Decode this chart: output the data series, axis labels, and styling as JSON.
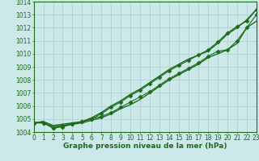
{
  "x": [
    0,
    1,
    2,
    3,
    4,
    5,
    6,
    7,
    8,
    9,
    10,
    11,
    12,
    13,
    14,
    15,
    16,
    17,
    18,
    19,
    20,
    21,
    22,
    23
  ],
  "series": [
    {
      "name": "smooth_top",
      "y": [
        1004.7,
        1004.8,
        1004.5,
        1004.6,
        1004.7,
        1004.8,
        1005.1,
        1005.5,
        1006.0,
        1006.4,
        1006.9,
        1007.3,
        1007.8,
        1008.3,
        1008.8,
        1009.2,
        1009.6,
        1009.9,
        1010.2,
        1010.8,
        1011.5,
        1012.0,
        1012.6,
        1013.4
      ],
      "color": "#1a6b1a",
      "marker": "None",
      "markersize": 0,
      "linestyle": "-",
      "linewidth": 1.0
    },
    {
      "name": "upper_marked",
      "y": [
        1004.7,
        1004.7,
        1004.3,
        1004.4,
        1004.6,
        1004.8,
        1005.0,
        1005.4,
        1005.9,
        1006.3,
        1006.8,
        1007.2,
        1007.7,
        1008.2,
        1008.7,
        1009.1,
        1009.5,
        1009.9,
        1010.3,
        1010.9,
        1011.6,
        1012.1,
        1012.5,
        1013.4
      ],
      "color": "#1a6b1a",
      "marker": "D",
      "markersize": 2.5,
      "linestyle": "-",
      "linewidth": 0.8
    },
    {
      "name": "lower_marked",
      "y": [
        1004.7,
        1004.7,
        1004.3,
        1004.5,
        1004.6,
        1004.8,
        1005.0,
        1005.2,
        1005.5,
        1005.9,
        1006.3,
        1006.7,
        1007.1,
        1007.6,
        1008.1,
        1008.5,
        1008.9,
        1009.3,
        1009.8,
        1010.2,
        1010.3,
        1011.0,
        1012.0,
        1013.0
      ],
      "color": "#1a6b1a",
      "marker": "D",
      "markersize": 2.5,
      "linestyle": "-",
      "linewidth": 0.8
    },
    {
      "name": "smooth_bottom",
      "y": [
        1004.7,
        1004.8,
        1004.4,
        1004.5,
        1004.6,
        1004.7,
        1004.9,
        1005.1,
        1005.4,
        1005.8,
        1006.1,
        1006.5,
        1007.0,
        1007.5,
        1008.0,
        1008.4,
        1008.8,
        1009.2,
        1009.7,
        1010.0,
        1010.3,
        1010.8,
        1012.0,
        1012.5
      ],
      "color": "#1a6b1a",
      "marker": "None",
      "markersize": 0,
      "linestyle": "-",
      "linewidth": 1.0
    }
  ],
  "ylim": [
    1004.0,
    1014.0
  ],
  "xlim": [
    0,
    23
  ],
  "yticks": [
    1004,
    1005,
    1006,
    1007,
    1008,
    1009,
    1010,
    1011,
    1012,
    1013,
    1014
  ],
  "xticks": [
    0,
    1,
    2,
    3,
    4,
    5,
    6,
    7,
    8,
    9,
    10,
    11,
    12,
    13,
    14,
    15,
    16,
    17,
    18,
    19,
    20,
    21,
    22,
    23
  ],
  "xlabel": "Graphe pression niveau de la mer (hPa)",
  "background_color": "#cde8e8",
  "grid_color": "#a8cece",
  "tick_color": "#1a6b1a",
  "spine_color": "#1a6b1a",
  "tick_label_fontsize": 5.5,
  "xlabel_fontsize": 6.5
}
